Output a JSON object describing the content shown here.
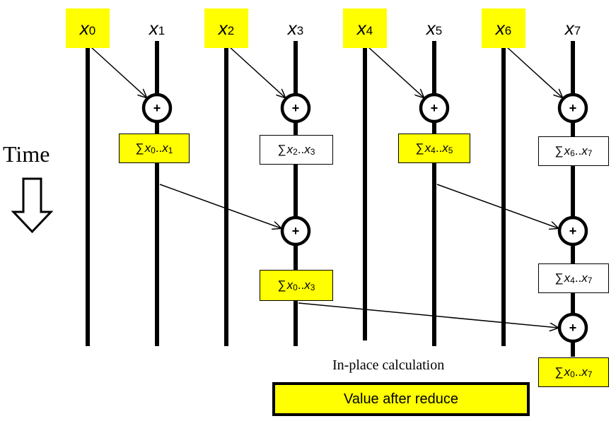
{
  "variables": [
    {
      "name": "x",
      "sub": "0",
      "highlight": true
    },
    {
      "name": "x",
      "sub": "1",
      "highlight": false
    },
    {
      "name": "x",
      "sub": "2",
      "highlight": true
    },
    {
      "name": "x",
      "sub": "3",
      "highlight": false
    },
    {
      "name": "x",
      "sub": "4",
      "highlight": true
    },
    {
      "name": "x",
      "sub": "5",
      "highlight": false
    },
    {
      "name": "x",
      "sub": "6",
      "highlight": true
    },
    {
      "name": "x",
      "sub": "7",
      "highlight": false
    }
  ],
  "partial_sums": [
    {
      "sym": "∑",
      "from": "0",
      "to": "1",
      "highlight": true
    },
    {
      "sym": "∑",
      "from": "2",
      "to": "3",
      "highlight": false
    },
    {
      "sym": "∑",
      "from": "4",
      "to": "5",
      "highlight": true
    },
    {
      "sym": "∑",
      "from": "6",
      "to": "7",
      "highlight": false
    },
    {
      "sym": "∑",
      "from": "0",
      "to": "3",
      "highlight": true
    },
    {
      "sym": "∑",
      "from": "4",
      "to": "7",
      "highlight": false
    },
    {
      "sym": "∑",
      "from": "0",
      "to": "7",
      "highlight": true
    }
  ],
  "operator_symbol": "+",
  "time_label": "Time",
  "caption": "In-place calculation",
  "legend_label": "Value after reduce",
  "colors": {
    "highlight": "#ffff00",
    "line": "#000000"
  }
}
